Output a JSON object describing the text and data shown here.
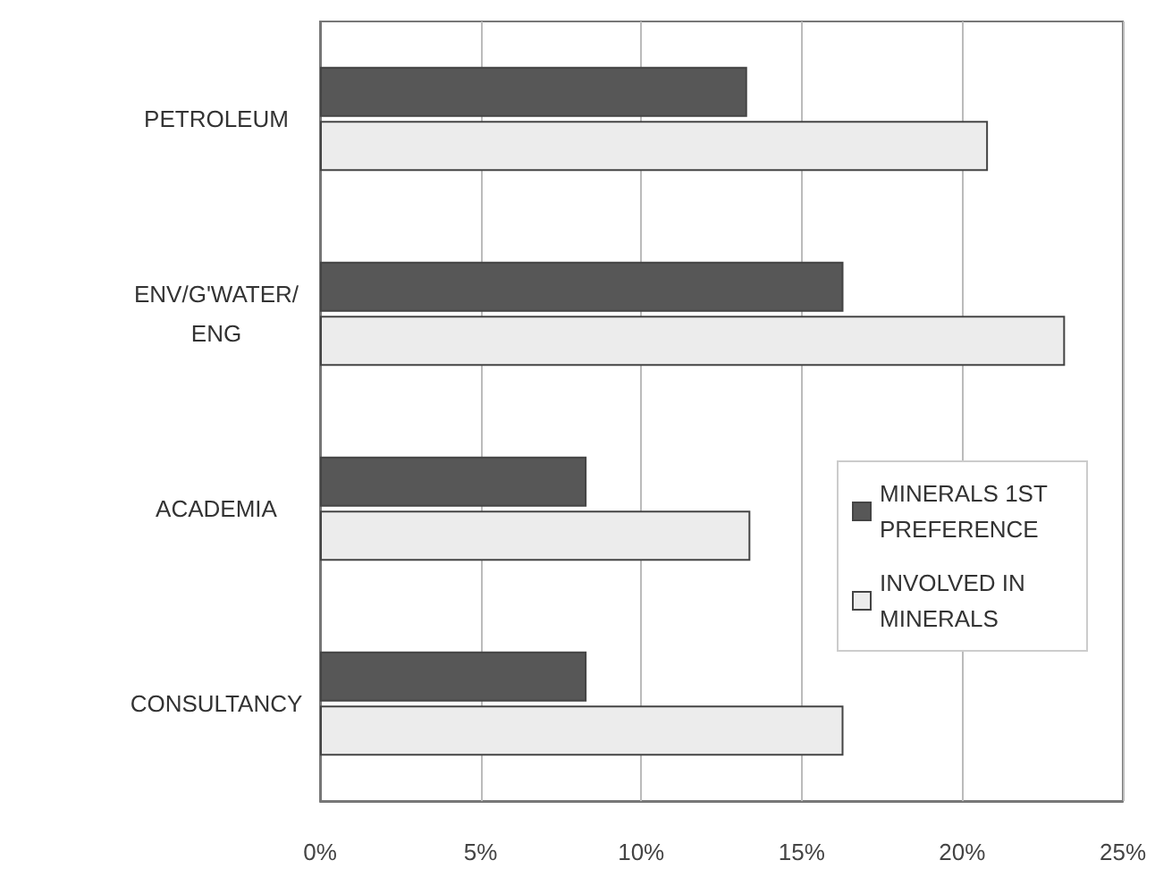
{
  "chart_data": {
    "type": "bar",
    "orientation": "horizontal",
    "categories": [
      "PETROLEUM",
      "ENV/G'WATER/ENG",
      "ACADEMIA",
      "CONSULTANCY"
    ],
    "series": [
      {
        "name": "MINERALS 1ST PREFERENCE",
        "color": "#575757",
        "values": [
          13.3,
          16.3,
          8.3,
          8.3
        ]
      },
      {
        "name": "INVOLVED IN MINERALS",
        "color": "#ececec",
        "values": [
          20.8,
          23.2,
          13.4,
          16.3
        ]
      }
    ],
    "xlim": [
      0,
      25
    ],
    "xticks": [
      {
        "value": 0,
        "label": "0%"
      },
      {
        "value": 5,
        "label": "5%"
      },
      {
        "value": 10,
        "label": "10%"
      },
      {
        "value": 15,
        "label": "15%"
      },
      {
        "value": 20,
        "label": "20%"
      },
      {
        "value": 25,
        "label": "25%"
      }
    ],
    "grid": "x",
    "legend": "right"
  }
}
